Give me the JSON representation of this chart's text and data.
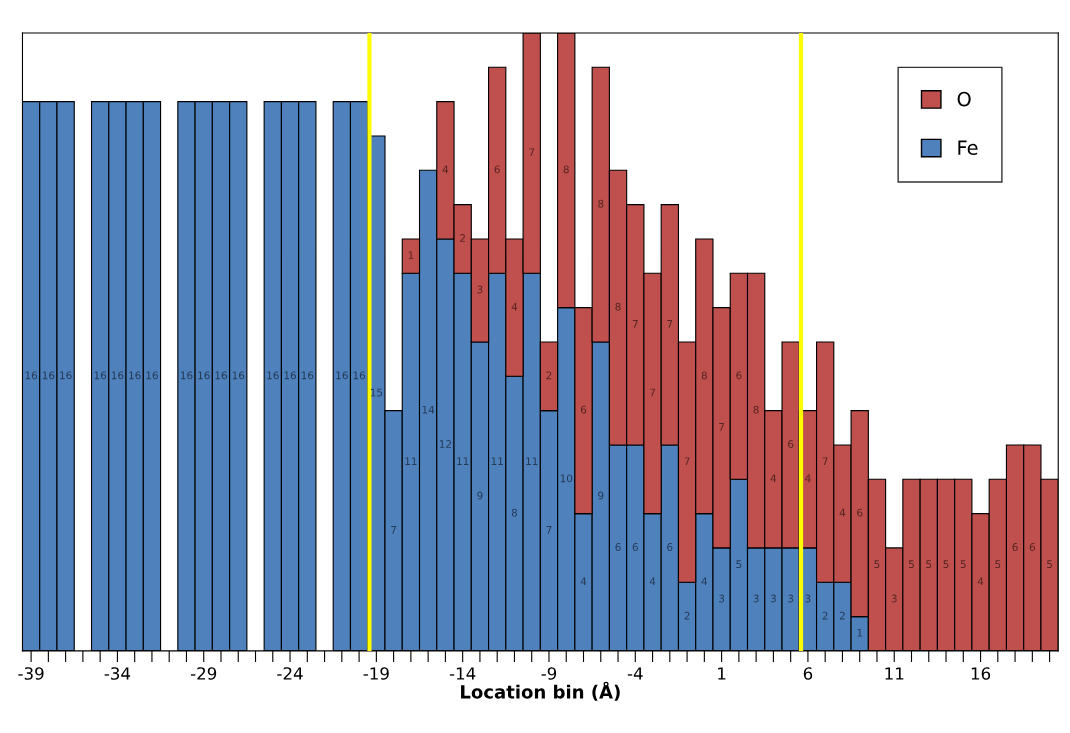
{
  "chart_data": {
    "type": "bar",
    "stacked": true,
    "xlabel": "Location bin (Å)",
    "x": [
      -39,
      -38,
      -37,
      -36,
      -35,
      -34,
      -33,
      -32,
      -31,
      -30,
      -29,
      -28,
      -27,
      -26,
      -25,
      -24,
      -23,
      -22,
      -21,
      -20,
      -19,
      -18,
      -17,
      -16,
      -15,
      -14,
      -13,
      -12,
      -11,
      -10,
      -9,
      -8,
      -7,
      -6,
      -5,
      -4,
      -3,
      -2,
      -1,
      0,
      1,
      2,
      3,
      4,
      5,
      6,
      7,
      8,
      9,
      10,
      11,
      12,
      13,
      14,
      15,
      16,
      17,
      18,
      19,
      20
    ],
    "xlim": [
      -39.5,
      20.5
    ],
    "xticks": [
      -39,
      {
        "value": -38,
        "label": null
      },
      {
        "value": -37,
        "label": null
      },
      {
        "value": -36,
        "label": null
      },
      {
        "value": -35,
        "label": null
      },
      -34,
      {
        "value": -33,
        "label": null
      },
      {
        "value": -32,
        "label": null
      },
      {
        "value": -31,
        "label": null
      },
      {
        "value": -30,
        "label": null
      },
      -29,
      {
        "value": -28,
        "label": null
      },
      {
        "value": -27,
        "label": null
      },
      {
        "value": -26,
        "label": null
      },
      {
        "value": -25,
        "label": null
      },
      -24,
      {
        "value": -23,
        "label": null
      },
      {
        "value": -22,
        "label": null
      },
      {
        "value": -21,
        "label": null
      },
      {
        "value": -20,
        "label": null
      },
      -19,
      {
        "value": -18,
        "label": null
      },
      {
        "value": -17,
        "label": null
      },
      {
        "value": -16,
        "label": null
      },
      {
        "value": -15,
        "label": null
      },
      -14,
      {
        "value": -13,
        "label": null
      },
      {
        "value": -12,
        "label": null
      },
      {
        "value": -11,
        "label": null
      },
      {
        "value": -10,
        "label": null
      },
      -9,
      {
        "value": -8,
        "label": null
      },
      {
        "value": -7,
        "label": null
      },
      {
        "value": -6,
        "label": null
      },
      {
        "value": -5,
        "label": null
      },
      -4,
      {
        "value": -3,
        "label": null
      },
      {
        "value": -2,
        "label": null
      },
      {
        "value": -1,
        "label": null
      },
      {
        "value": 0,
        "label": null
      },
      1,
      {
        "value": 2,
        "label": null
      },
      {
        "value": 3,
        "label": null
      },
      {
        "value": 4,
        "label": null
      },
      {
        "value": 5,
        "label": null
      },
      6,
      {
        "value": 7,
        "label": null
      },
      {
        "value": 8,
        "label": null
      },
      {
        "value": 9,
        "label": null
      },
      {
        "value": 10,
        "label": null
      },
      11,
      {
        "value": 12,
        "label": null
      },
      {
        "value": 13,
        "label": null
      },
      {
        "value": 14,
        "label": null
      },
      {
        "value": 15,
        "label": null
      },
      16,
      {
        "value": 17,
        "label": null
      },
      {
        "value": 18,
        "label": null
      },
      {
        "value": 19,
        "label": null
      },
      {
        "value": 20,
        "label": null
      }
    ],
    "series": [
      {
        "name": "Fe",
        "color": "#4f81bd",
        "values": [
          16,
          16,
          16,
          null,
          16,
          16,
          16,
          16,
          null,
          16,
          16,
          16,
          16,
          null,
          16,
          16,
          16,
          null,
          16,
          16,
          15,
          7,
          11,
          14,
          12,
          11,
          9,
          11,
          8,
          11,
          7,
          10,
          4,
          9,
          6,
          6,
          4,
          6,
          2,
          4,
          3,
          5,
          3,
          3,
          3,
          3,
          2,
          2,
          1,
          null,
          null,
          null,
          null,
          null,
          null,
          null,
          null,
          null,
          null,
          null
        ]
      },
      {
        "name": "O",
        "color": "#c0504d",
        "values": [
          null,
          null,
          null,
          null,
          null,
          null,
          null,
          null,
          null,
          null,
          null,
          null,
          null,
          null,
          null,
          null,
          null,
          null,
          null,
          null,
          null,
          null,
          1,
          null,
          4,
          2,
          3,
          6,
          4,
          7,
          2,
          8,
          6,
          8,
          8,
          7,
          7,
          7,
          7,
          8,
          7,
          6,
          8,
          4,
          6,
          4,
          7,
          4,
          6,
          5,
          3,
          5,
          5,
          5,
          5,
          4,
          5,
          6,
          6,
          5
        ]
      }
    ],
    "ref_lines": [
      {
        "axis": "x",
        "value": -19.4,
        "color": "#ffff00"
      },
      {
        "axis": "x",
        "value": 5.6,
        "color": "#ffff00"
      }
    ],
    "data_labels": true,
    "legend": "top right",
    "tick_labels": "x",
    "grid": false
  }
}
